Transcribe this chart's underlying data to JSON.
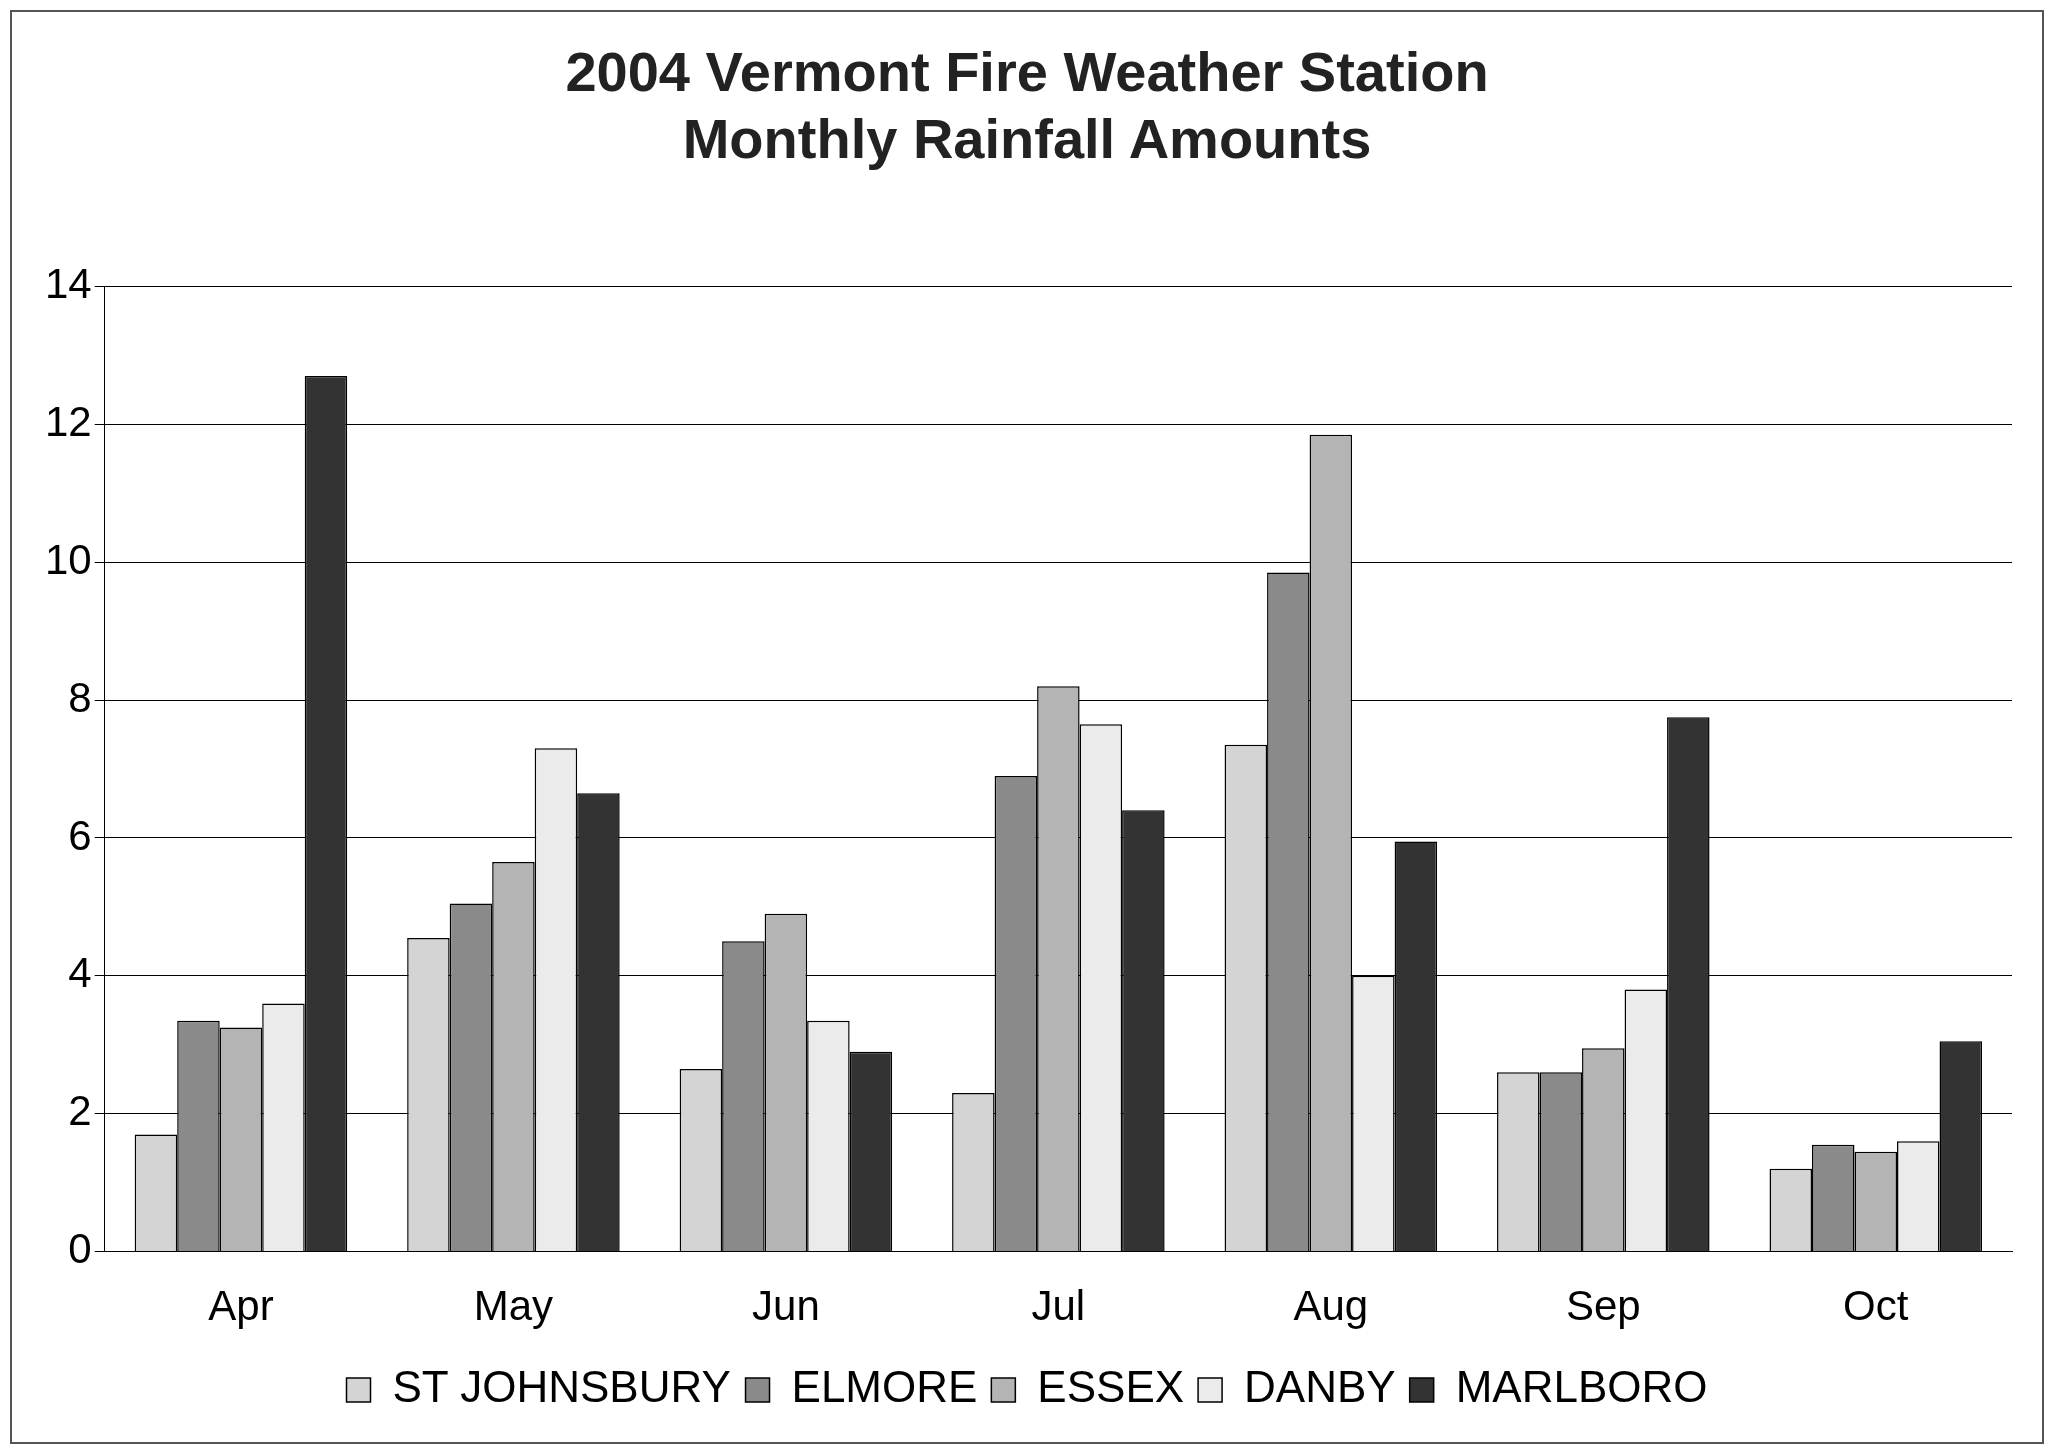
{
  "chart_data": {
    "type": "bar",
    "title": [
      "2004 Vermont Fire Weather Station",
      "Monthly Rainfall Amounts"
    ],
    "categories": [
      "Apr",
      "May",
      "Jun",
      "Jul",
      "Aug",
      "Sep",
      "Oct"
    ],
    "series": [
      {
        "name": "ST JOHNSBURY",
        "color": "#d4d4d4",
        "values": [
          1.7,
          4.55,
          2.65,
          2.3,
          7.35,
          2.6,
          1.2
        ]
      },
      {
        "name": "ELMORE",
        "color": "#8a8a8a",
        "values": [
          3.35,
          5.05,
          4.5,
          6.9,
          9.85,
          2.6,
          1.55
        ]
      },
      {
        "name": "ESSEX",
        "color": "#b4b4b4",
        "values": [
          3.25,
          5.65,
          4.9,
          8.2,
          11.85,
          2.95,
          1.45
        ]
      },
      {
        "name": "DANBY",
        "color": "#ebebeb",
        "values": [
          3.6,
          7.3,
          3.35,
          7.65,
          4.0,
          3.8,
          1.6
        ]
      },
      {
        "name": "MARLBORO",
        "color": "#333333",
        "values": [
          12.7,
          6.65,
          2.9,
          6.4,
          5.95,
          7.75,
          3.05
        ]
      }
    ],
    "ylim": [
      0,
      14
    ],
    "yticks": [
      0,
      2,
      4,
      6,
      8,
      10,
      12,
      14
    ],
    "grid": "y",
    "legend": "bottom"
  }
}
